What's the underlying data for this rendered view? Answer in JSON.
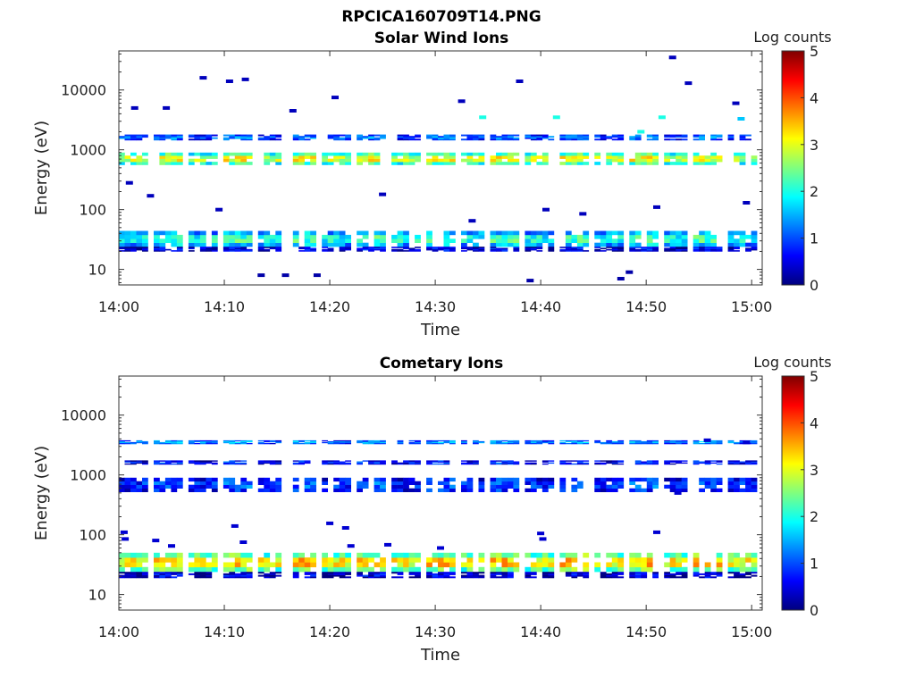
{
  "figure": {
    "title": "RPCICA160709T14.PNG"
  },
  "colormap": {
    "name": "jet",
    "stops": [
      "#00007f",
      "#0000ff",
      "#007fff",
      "#00ffff",
      "#7fff7f",
      "#ffff00",
      "#ff7f00",
      "#ff0000",
      "#7f0000"
    ]
  },
  "chart_data": [
    {
      "type": "heatmap",
      "title": "Solar Wind Ions",
      "xlabel": "Time",
      "ylabel": "Energy (eV)",
      "x_range": [
        "14:00",
        "15:01"
      ],
      "x_ticks": [
        "14:00",
        "14:10",
        "14:20",
        "14:30",
        "14:40",
        "14:50",
        "15:00"
      ],
      "y_scale": "log",
      "y_range": [
        5.5,
        45000
      ],
      "y_ticks": [
        {
          "value": 10,
          "label": "10"
        },
        {
          "value": 100,
          "label": "100"
        },
        {
          "value": 1000,
          "label": "1000"
        },
        {
          "value": 10000,
          "label": "10000"
        }
      ],
      "colorbar": {
        "label": "Log counts",
        "range": [
          0,
          5
        ],
        "ticks": [
          "0",
          "1",
          "2",
          "3",
          "4",
          "5"
        ]
      },
      "bands": [
        {
          "energy_range": [
            24,
            44
          ],
          "value": 1.8
        },
        {
          "energy_range": [
            20,
            24
          ],
          "value": 0.4
        },
        {
          "energy_range": [
            1450,
            1800
          ],
          "value": 1.0
        },
        {
          "energy_range": [
            560,
            900
          ],
          "value": 2.6
        }
      ],
      "scatter": [
        {
          "time_min": 13.5,
          "energy": 8,
          "value": 0.2
        },
        {
          "time_min": 15.8,
          "energy": 8,
          "value": 0.2
        },
        {
          "time_min": 18.8,
          "energy": 8,
          "value": 0.2
        },
        {
          "time_min": 47.6,
          "energy": 7,
          "value": 0.2
        },
        {
          "time_min": 48.4,
          "energy": 9,
          "value": 0.2
        },
        {
          "time_min": 39.0,
          "energy": 6.5,
          "value": 0.2
        },
        {
          "time_min": 1.5,
          "energy": 5000,
          "value": 0.3
        },
        {
          "time_min": 4.5,
          "energy": 5000,
          "value": 0.3
        },
        {
          "time_min": 8.0,
          "energy": 16000,
          "value": 0.3
        },
        {
          "time_min": 10.5,
          "energy": 14000,
          "value": 0.3
        },
        {
          "time_min": 12.0,
          "energy": 15000,
          "value": 0.3
        },
        {
          "time_min": 16.5,
          "energy": 4500,
          "value": 0.3
        },
        {
          "time_min": 20.5,
          "energy": 7500,
          "value": 0.3
        },
        {
          "time_min": 32.5,
          "energy": 6500,
          "value": 0.3
        },
        {
          "time_min": 38.0,
          "energy": 14000,
          "value": 0.3
        },
        {
          "time_min": 52.5,
          "energy": 35000,
          "value": 0.3
        },
        {
          "time_min": 54.0,
          "energy": 13000,
          "value": 0.3
        },
        {
          "time_min": 58.5,
          "energy": 6000,
          "value": 0.3
        },
        {
          "time_min": 1.0,
          "energy": 280,
          "value": 0.3
        },
        {
          "time_min": 3.0,
          "energy": 170,
          "value": 0.3
        },
        {
          "time_min": 9.5,
          "energy": 100,
          "value": 0.3
        },
        {
          "time_min": 25.0,
          "energy": 180,
          "value": 0.3
        },
        {
          "time_min": 33.5,
          "energy": 65,
          "value": 0.3
        },
        {
          "time_min": 40.5,
          "energy": 100,
          "value": 0.3
        },
        {
          "time_min": 44.0,
          "energy": 85,
          "value": 0.3
        },
        {
          "time_min": 51.0,
          "energy": 110,
          "value": 0.3
        },
        {
          "time_min": 59.5,
          "energy": 130,
          "value": 0.3
        },
        {
          "time_min": 49.5,
          "energy": 2000,
          "value": 2.0
        },
        {
          "time_min": 41.5,
          "energy": 3500,
          "value": 2.0
        },
        {
          "time_min": 34.5,
          "energy": 3500,
          "value": 2.0
        },
        {
          "time_min": 51.5,
          "energy": 3500,
          "value": 2.0
        },
        {
          "time_min": 59.0,
          "energy": 3300,
          "value": 1.6
        }
      ]
    },
    {
      "type": "heatmap",
      "title": "Cometary Ions",
      "xlabel": "Time",
      "ylabel": "Energy (eV)",
      "x_range": [
        "14:00",
        "15:01"
      ],
      "x_ticks": [
        "14:00",
        "14:10",
        "14:20",
        "14:30",
        "14:40",
        "14:50",
        "15:00"
      ],
      "y_scale": "log",
      "y_range": [
        5.5,
        45000
      ],
      "y_ticks": [
        {
          "value": 10,
          "label": "10"
        },
        {
          "value": 100,
          "label": "100"
        },
        {
          "value": 1000,
          "label": "1000"
        },
        {
          "value": 10000,
          "label": "10000"
        }
      ],
      "colorbar": {
        "label": "Log counts",
        "range": [
          0,
          5
        ],
        "ticks": [
          "0",
          "1",
          "2",
          "3",
          "4",
          "5"
        ]
      },
      "bands": [
        {
          "energy_range": [
            24,
            50
          ],
          "value": 2.9
        },
        {
          "energy_range": [
            19,
            24
          ],
          "value": 0.3
        },
        {
          "energy_range": [
            520,
            900
          ],
          "value": 0.8
        },
        {
          "energy_range": [
            1500,
            1750
          ],
          "value": 0.6
        },
        {
          "energy_range": [
            3300,
            3800
          ],
          "value": 1.2
        }
      ],
      "scatter": [
        {
          "time_min": 0.5,
          "energy": 110,
          "value": 0.4
        },
        {
          "time_min": 0.6,
          "energy": 85,
          "value": 0.4
        },
        {
          "time_min": 3.5,
          "energy": 80,
          "value": 0.4
        },
        {
          "time_min": 5.0,
          "energy": 65,
          "value": 0.4
        },
        {
          "time_min": 11.0,
          "energy": 140,
          "value": 0.4
        },
        {
          "time_min": 11.8,
          "energy": 75,
          "value": 0.4
        },
        {
          "time_min": 20.0,
          "energy": 155,
          "value": 0.4
        },
        {
          "time_min": 21.5,
          "energy": 130,
          "value": 0.4
        },
        {
          "time_min": 22.0,
          "energy": 65,
          "value": 0.4
        },
        {
          "time_min": 25.5,
          "energy": 68,
          "value": 0.4
        },
        {
          "time_min": 30.5,
          "energy": 60,
          "value": 0.4
        },
        {
          "time_min": 40.0,
          "energy": 105,
          "value": 0.4
        },
        {
          "time_min": 40.2,
          "energy": 85,
          "value": 0.4
        },
        {
          "time_min": 51.0,
          "energy": 110,
          "value": 0.4
        },
        {
          "time_min": 53.0,
          "energy": 500,
          "value": 0.4
        },
        {
          "time_min": 55.8,
          "energy": 3800,
          "value": 0.4
        },
        {
          "time_min": 59.5,
          "energy": 3500,
          "value": 0.4
        }
      ]
    }
  ]
}
